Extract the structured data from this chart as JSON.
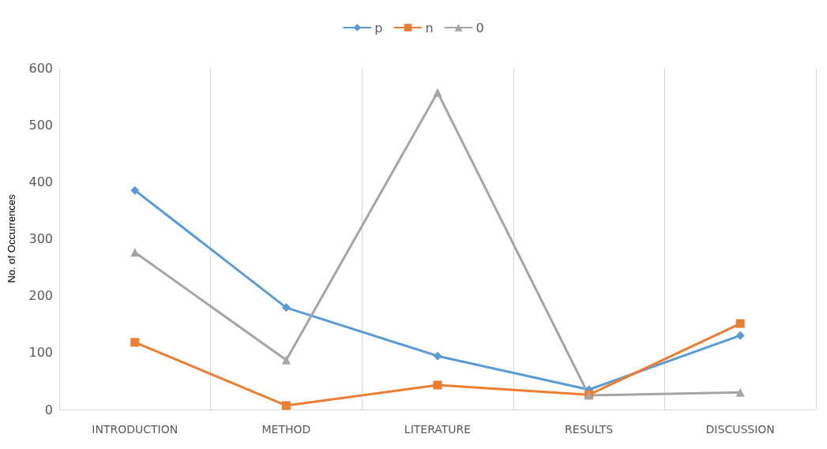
{
  "chart_data": {
    "type": "line",
    "ylabel": "No. of Occurrences",
    "categories": [
      "INTRODUCTION",
      "METHOD",
      "LITERATURE",
      "RESULTS",
      "DISCUSSION"
    ],
    "series": [
      {
        "name": "p",
        "color": "#5b9bd5",
        "marker": "diamond",
        "values": [
          385,
          179,
          94,
          35,
          130
        ]
      },
      {
        "name": "n",
        "color": "#ed7d31",
        "marker": "square",
        "values": [
          118,
          7,
          43,
          26,
          151
        ]
      },
      {
        "name": "0",
        "color": "#a5a5a5",
        "marker": "triangle",
        "values": [
          276,
          87,
          557,
          25,
          30
        ]
      }
    ],
    "ylim": [
      0,
      600
    ],
    "yticks": [
      0,
      100,
      200,
      300,
      400,
      500,
      600
    ],
    "grid": "x",
    "legend": "top",
    "line_style": "solid"
  }
}
